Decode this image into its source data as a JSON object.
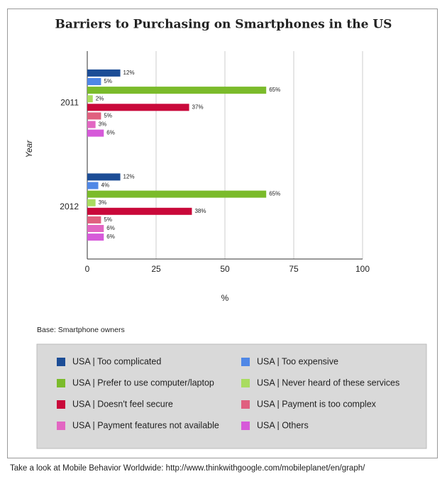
{
  "chart_data": {
    "type": "bar",
    "orientation": "horizontal",
    "title": "Barriers to Purchasing on Smartphones in the US",
    "y_label": "Year",
    "x_label": "%",
    "note": "Base: Smartphone owners",
    "source": "Take a look at Mobile Behavior Worldwide: http://www.thinkwithgoogle.com/mobileplanet/en/graph/",
    "categories": [
      "2011",
      "2012"
    ],
    "xlim": [
      0,
      100
    ],
    "xticks": [
      0,
      25,
      50,
      75,
      100
    ],
    "grid": true,
    "legend": "bottom",
    "series": [
      {
        "name": "USA | Too complicated",
        "color": "#1c4d96",
        "values": [
          12,
          12
        ],
        "value_labels": [
          "12%",
          "12%"
        ]
      },
      {
        "name": "USA | Too expensive",
        "color": "#4f87e6",
        "values": [
          5,
          4
        ],
        "value_labels": [
          "5%",
          "4%"
        ]
      },
      {
        "name": "USA | Prefer to use computer/laptop",
        "color": "#7bbb2b",
        "values": [
          65,
          65
        ],
        "value_labels": [
          "65%",
          "65%"
        ]
      },
      {
        "name": "USA | Never heard of these services",
        "color": "#a9dc60",
        "values": [
          2,
          3
        ],
        "value_labels": [
          "2%",
          "3%"
        ]
      },
      {
        "name": "USA | Doesn't feel secure",
        "color": "#c9093a",
        "values": [
          37,
          38
        ],
        "value_labels": [
          "37%",
          "38%"
        ]
      },
      {
        "name": "USA | Payment is too complex",
        "color": "#e0607f",
        "values": [
          5,
          5
        ],
        "value_labels": [
          "5%",
          "5%"
        ]
      },
      {
        "name": "USA | Payment features not available",
        "color": "#e266c2",
        "values": [
          3,
          6
        ],
        "value_labels": [
          "3%",
          "6%"
        ]
      },
      {
        "name": "USA | Others",
        "color": "#d65ad9",
        "values": [
          6,
          6
        ],
        "value_labels": [
          "6%",
          "6%"
        ]
      }
    ]
  }
}
